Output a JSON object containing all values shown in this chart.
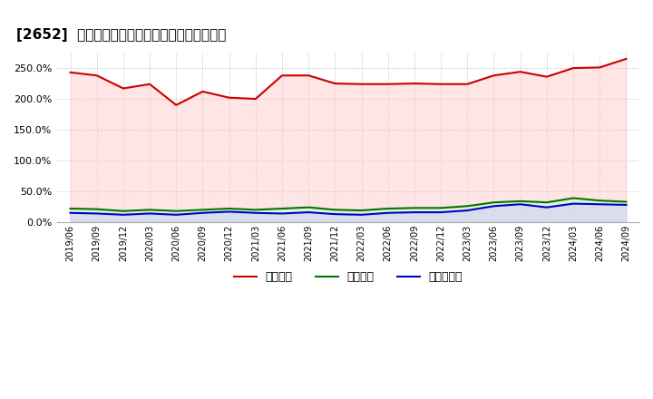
{
  "title": "[2652]  流動比率、当座比率、現領金比率の推移",
  "x_labels": [
    "2019/06",
    "2019/09",
    "2019/12",
    "2020/03",
    "2020/06",
    "2020/09",
    "2020/12",
    "2021/03",
    "2021/06",
    "2021/09",
    "2021/12",
    "2022/03",
    "2022/06",
    "2022/09",
    "2022/12",
    "2023/03",
    "2023/06",
    "2023/09",
    "2023/12",
    "2024/03",
    "2024/06",
    "2024/09"
  ],
  "ryudo": [
    243,
    238,
    217,
    224,
    190,
    212,
    202,
    200,
    238,
    238,
    225,
    224,
    224,
    225,
    224,
    224,
    238,
    244,
    236,
    250,
    251,
    265
  ],
  "toza": [
    22,
    21,
    18,
    20,
    18,
    20,
    22,
    20,
    22,
    24,
    20,
    19,
    22,
    23,
    23,
    26,
    32,
    34,
    32,
    39,
    35,
    33
  ],
  "genyo": [
    15,
    14,
    12,
    14,
    12,
    15,
    17,
    15,
    14,
    16,
    13,
    12,
    15,
    16,
    16,
    19,
    26,
    29,
    24,
    30,
    29,
    28
  ],
  "ryudo_color": "#cc0000",
  "toza_color": "#007700",
  "genyo_color": "#0000cc",
  "ryudo_fill": "#ffcccc",
  "toza_fill": "#ccffcc",
  "genyo_fill": "#ccccff",
  "legend_labels": [
    "流動比率",
    "当座比率",
    "現領金比率"
  ],
  "ylim": [
    0,
    275
  ],
  "yticks": [
    0,
    50,
    100,
    150,
    200,
    250
  ],
  "bg_color": "#ffffff",
  "plot_bg_color": "#ffffff",
  "grid_color": "#aaaaaa"
}
